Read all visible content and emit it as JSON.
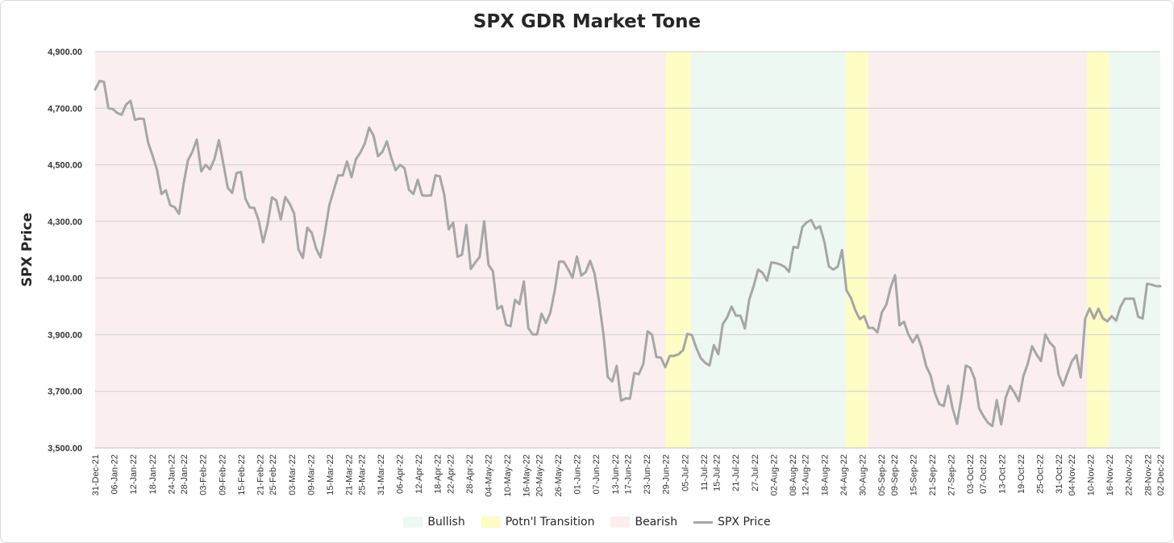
{
  "chart_data": {
    "type": "line",
    "title": "SPX GDR Market Tone",
    "ylabel": "SPX Price",
    "xlabel": "",
    "ylim": [
      3500,
      4900
    ],
    "y_ticks": [
      "3,500.00",
      "3,700.00",
      "3,900.00",
      "4,100.00",
      "4,300.00",
      "4,500.00",
      "4,700.00",
      "4,900.00"
    ],
    "x_ticks": [
      "31-Dec-21",
      "06-Jan-22",
      "12-Jan-22",
      "18-Jan-22",
      "24-Jan-22",
      "28-Jan-22",
      "03-Feb-22",
      "09-Feb-22",
      "15-Feb-22",
      "21-Feb-22",
      "25-Feb-22",
      "03-Mar-22",
      "09-Mar-22",
      "15-Mar-22",
      "21-Mar-22",
      "25-Mar-22",
      "31-Mar-22",
      "06-Apr-22",
      "12-Apr-22",
      "18-Apr-22",
      "22-Apr-22",
      "28-Apr-22",
      "04-May-22",
      "10-May-22",
      "16-May-22",
      "20-May-22",
      "26-May-22",
      "01-Jun-22",
      "07-Jun-22",
      "13-Jun-22",
      "17-Jun-22",
      "23-Jun-22",
      "29-Jun-22",
      "05-Jul-22",
      "11-Jul-22",
      "15-Jul-22",
      "21-Jul-22",
      "27-Jul-22",
      "02-Aug-22",
      "08-Aug-22",
      "12-Aug-22",
      "18-Aug-22",
      "24-Aug-22",
      "30-Aug-22",
      "05-Sep-22",
      "09-Sep-22",
      "15-Sep-22",
      "21-Sep-22",
      "27-Sep-22",
      "03-Oct-22",
      "07-Oct-22",
      "13-Oct-22",
      "19-Oct-22",
      "25-Oct-22",
      "31-Oct-22",
      "04-Nov-22",
      "10-Nov-22",
      "16-Nov-22",
      "22-Nov-22",
      "28-Nov-22",
      "02-Dec-22"
    ],
    "series": [
      {
        "name": "SPX Price",
        "color": "#a6a6a6",
        "values": [
          4766,
          4796,
          4793,
          4700,
          4697,
          4683,
          4677,
          4713,
          4726,
          4659,
          4663,
          4662,
          4577,
          4532,
          4482,
          4397,
          4410,
          4357,
          4350,
          4327,
          4431,
          4516,
          4546,
          4589,
          4477,
          4500,
          4484,
          4521,
          4587,
          4504,
          4419,
          4401,
          4471,
          4475,
          4380,
          4349,
          4348,
          4304,
          4226,
          4289,
          4385,
          4374,
          4307,
          4386,
          4363,
          4329,
          4202,
          4171,
          4278,
          4260,
          4204,
          4173,
          4262,
          4358,
          4411,
          4463,
          4462,
          4512,
          4456,
          4520,
          4543,
          4575,
          4631,
          4603,
          4530,
          4546,
          4583,
          4525,
          4481,
          4500,
          4488,
          4412,
          4397,
          4447,
          4392,
          4391,
          4392,
          4463,
          4459,
          4394,
          4272,
          4296,
          4175,
          4183,
          4288,
          4132,
          4155,
          4175,
          4301,
          4147,
          4124,
          3991,
          4001,
          3935,
          3930,
          4023,
          4008,
          4088,
          3923,
          3901,
          3901,
          3974,
          3941,
          3978,
          4058,
          4158,
          4158,
          4132,
          4101,
          4176,
          4109,
          4121,
          4161,
          4116,
          4018,
          3901,
          3750,
          3735,
          3790,
          3667,
          3675,
          3674,
          3765,
          3760,
          3795,
          3912,
          3900,
          3821,
          3819,
          3785,
          3825,
          3825,
          3831,
          3845,
          3903,
          3899,
          3854,
          3818,
          3801,
          3791,
          3863,
          3831,
          3937,
          3961,
          3999,
          3967,
          3967,
          3922,
          4024,
          4072,
          4130,
          4119,
          4091,
          4155,
          4153,
          4148,
          4140,
          4122,
          4210,
          4207,
          4280,
          4297,
          4305,
          4274,
          4283,
          4228,
          4141,
          4130,
          4140,
          4199,
          4057,
          4030,
          3986,
          3955,
          3966,
          3924,
          3924,
          3908,
          3979,
          4006,
          4067,
          4110,
          3933,
          3946,
          3901,
          3873,
          3899,
          3855,
          3790,
          3757,
          3693,
          3655,
          3648,
          3719,
          3640,
          3585,
          3678,
          3791,
          3783,
          3744,
          3640,
          3612,
          3589,
          3577,
          3669,
          3583,
          3677,
          3719,
          3695,
          3665,
          3753,
          3797,
          3859,
          3830,
          3807,
          3901,
          3872,
          3856,
          3759,
          3720,
          3764,
          3806,
          3828,
          3749,
          3956,
          3993,
          3957,
          3992,
          3958,
          3947,
          3965,
          3950,
          3999,
          4027,
          4027,
          4027,
          3963,
          3957,
          4080,
          4077,
          4072,
          4071
        ]
      }
    ],
    "tone_regions": [
      {
        "tone": "Bearish",
        "from": "31-Dec-21",
        "to": "29-Jun-22"
      },
      {
        "tone": "Potn'l Transition",
        "from": "29-Jun-22",
        "to": "07-Jul-22"
      },
      {
        "tone": "Bullish",
        "from": "07-Jul-22",
        "to": "25-Aug-22"
      },
      {
        "tone": "Potn'l Transition",
        "from": "25-Aug-22",
        "to": "01-Sep-22"
      },
      {
        "tone": "Bearish",
        "from": "01-Sep-22",
        "to": "09-Nov-22"
      },
      {
        "tone": "Potn'l Transition",
        "from": "09-Nov-22",
        "to": "16-Nov-22"
      },
      {
        "tone": "Bullish",
        "from": "16-Nov-22",
        "to": "02-Dec-22"
      }
    ],
    "grid": true,
    "legend_position": "bottom",
    "legend": [
      {
        "label": "Bullish",
        "color": "#eef8f2"
      },
      {
        "label": "Potn'l Transition",
        "color": "#fdfdc4"
      },
      {
        "label": "Bearish",
        "color": "#fbeeee"
      },
      {
        "label": "SPX Price",
        "color": "#a6a6a6"
      }
    ]
  }
}
